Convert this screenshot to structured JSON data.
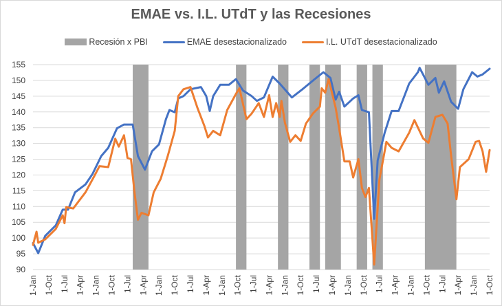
{
  "chart_data": {
    "type": "line",
    "title": "EMAE vs. I.L. UTdT y las Recesiones",
    "legend_position": "top",
    "grid": true,
    "ylim": [
      90,
      155
    ],
    "y_ticks": [
      90,
      95,
      100,
      105,
      110,
      115,
      120,
      125,
      130,
      135,
      140,
      145,
      150,
      155
    ],
    "x_range": [
      "2004-01",
      "2025-10"
    ],
    "x_tick_labels": [
      "1-Jan",
      "1-Oct",
      "1-Jul",
      "1-Apr",
      "1-Jan",
      "1-Oct",
      "1-Jul",
      "1-Apr",
      "1-Jan",
      "1-Oct",
      "1-Jul",
      "1-Apr",
      "1-Jan",
      "1-Oct",
      "1-Jul",
      "1-Apr",
      "1-Jan",
      "1-Oct",
      "1-Jul",
      "1-Apr",
      "1-Jan",
      "1-Oct",
      "1-Jul",
      "1-Apr",
      "1-Jan",
      "1-Oct",
      "1-Jul",
      "1-Apr",
      "1-Jan",
      "1-Oct"
    ],
    "recessions": {
      "name": "Recesión x PBI",
      "color": "#a5a5a5",
      "periods": [
        [
          "2008-10",
          "2009-07"
        ],
        [
          "2013-09",
          "2014-03"
        ],
        [
          "2015-09",
          "2016-03"
        ],
        [
          "2017-03",
          "2017-09"
        ],
        [
          "2017-12",
          "2018-09"
        ],
        [
          "2019-06",
          "2019-12"
        ],
        [
          "2020-03",
          "2020-09"
        ],
        [
          "2022-09",
          "2024-03"
        ]
      ]
    },
    "series": [
      {
        "name": "EMAE desestacionalizado",
        "color": "#4472c4",
        "points": [
          [
            "2004-01",
            98.4
          ],
          [
            "2004-04",
            95.2
          ],
          [
            "2004-08",
            100.7
          ],
          [
            "2005-02",
            104
          ],
          [
            "2005-06",
            109
          ],
          [
            "2005-09",
            109
          ],
          [
            "2006-01",
            114.5
          ],
          [
            "2006-07",
            117
          ],
          [
            "2006-11",
            120.3
          ],
          [
            "2007-04",
            126
          ],
          [
            "2007-08",
            128.6
          ],
          [
            "2008-01",
            134.8
          ],
          [
            "2008-05",
            136
          ],
          [
            "2008-10",
            136
          ],
          [
            "2009-01",
            126
          ],
          [
            "2009-05",
            121.7
          ],
          [
            "2009-09",
            127.5
          ],
          [
            "2010-01",
            129.7
          ],
          [
            "2010-05",
            137.7
          ],
          [
            "2010-07",
            140.6
          ],
          [
            "2010-10",
            139.9
          ],
          [
            "2010-12",
            144.3
          ],
          [
            "2011-03",
            145
          ],
          [
            "2011-07",
            147.2
          ],
          [
            "2012-01",
            147.9
          ],
          [
            "2012-04",
            145
          ],
          [
            "2012-06",
            140.3
          ],
          [
            "2012-08",
            145
          ],
          [
            "2012-12",
            148.6
          ],
          [
            "2013-05",
            148.6
          ],
          [
            "2013-09",
            150.4
          ],
          [
            "2014-01",
            146.8
          ],
          [
            "2014-06",
            145
          ],
          [
            "2014-09",
            143.5
          ],
          [
            "2015-01",
            144.6
          ],
          [
            "2015-06",
            151.2
          ],
          [
            "2015-10",
            149
          ],
          [
            "2016-05",
            144.6
          ],
          [
            "2016-11",
            147.2
          ],
          [
            "2017-06",
            150.4
          ],
          [
            "2017-11",
            152.6
          ],
          [
            "2018-03",
            150.8
          ],
          [
            "2018-06",
            143.9
          ],
          [
            "2018-08",
            146.4
          ],
          [
            "2018-11",
            141.7
          ],
          [
            "2019-04",
            144.3
          ],
          [
            "2019-07",
            145.3
          ],
          [
            "2019-09",
            140.6
          ],
          [
            "2020-01",
            139.9
          ],
          [
            "2020-04",
            106.1
          ],
          [
            "2020-06",
            124.6
          ],
          [
            "2020-10",
            133.4
          ],
          [
            "2021-02",
            140.3
          ],
          [
            "2021-06",
            140.3
          ],
          [
            "2021-12",
            149
          ],
          [
            "2022-05",
            152.6
          ],
          [
            "2022-06",
            154
          ],
          [
            "2022-11",
            148.6
          ],
          [
            "2023-03",
            150.8
          ],
          [
            "2023-05",
            146.1
          ],
          [
            "2023-08",
            149.7
          ],
          [
            "2023-12",
            143.2
          ],
          [
            "2024-04",
            141
          ],
          [
            "2024-07",
            147.2
          ],
          [
            "2024-12",
            152.6
          ],
          [
            "2025-03",
            151.2
          ],
          [
            "2025-06",
            151.9
          ],
          [
            "2025-10",
            153.7
          ]
        ]
      },
      {
        "name": "I.L. UTdT desestacionalizado",
        "color": "#ed7d31",
        "points": [
          [
            "2004-01",
            97.8
          ],
          [
            "2004-03",
            102
          ],
          [
            "2004-04",
            98.5
          ],
          [
            "2004-08",
            99.6
          ],
          [
            "2005-02",
            102.9
          ],
          [
            "2005-06",
            107.2
          ],
          [
            "2005-07",
            104.7
          ],
          [
            "2005-08",
            109.8
          ],
          [
            "2005-12",
            109.4
          ],
          [
            "2006-07",
            114.5
          ],
          [
            "2006-12",
            119.6
          ],
          [
            "2007-03",
            122.8
          ],
          [
            "2007-08",
            122.5
          ],
          [
            "2007-12",
            131.5
          ],
          [
            "2008-02",
            129
          ],
          [
            "2008-05",
            132.6
          ],
          [
            "2008-07",
            125.4
          ],
          [
            "2008-09",
            125
          ],
          [
            "2008-11",
            114.5
          ],
          [
            "2009-01",
            105.8
          ],
          [
            "2009-03",
            108
          ],
          [
            "2009-07",
            107.2
          ],
          [
            "2009-10",
            114.5
          ],
          [
            "2010-02",
            118.8
          ],
          [
            "2010-06",
            126
          ],
          [
            "2010-10",
            134
          ],
          [
            "2010-12",
            145
          ],
          [
            "2011-03",
            147.2
          ],
          [
            "2011-07",
            147.9
          ],
          [
            "2011-11",
            141.3
          ],
          [
            "2012-03",
            135.5
          ],
          [
            "2012-05",
            131.9
          ],
          [
            "2012-08",
            134
          ],
          [
            "2012-12",
            132.6
          ],
          [
            "2013-04",
            140.6
          ],
          [
            "2013-09",
            145.7
          ],
          [
            "2013-11",
            147.5
          ],
          [
            "2014-03",
            137.7
          ],
          [
            "2014-06",
            139.5
          ],
          [
            "2014-10",
            142.8
          ],
          [
            "2015-01",
            138.4
          ],
          [
            "2015-04",
            145.3
          ],
          [
            "2015-06",
            138.4
          ],
          [
            "2015-08",
            142.8
          ],
          [
            "2015-10",
            138.4
          ],
          [
            "2015-11",
            143.5
          ],
          [
            "2016-01",
            136.6
          ],
          [
            "2016-04",
            130.5
          ],
          [
            "2016-07",
            132.6
          ],
          [
            "2016-10",
            130.8
          ],
          [
            "2017-01",
            136.3
          ],
          [
            "2017-05",
            139.5
          ],
          [
            "2017-09",
            141.7
          ],
          [
            "2017-10",
            147.5
          ],
          [
            "2017-12",
            146.1
          ],
          [
            "2018-02",
            150.4
          ],
          [
            "2018-06",
            141.3
          ],
          [
            "2018-08",
            134.8
          ],
          [
            "2018-11",
            124.3
          ],
          [
            "2019-02",
            124.3
          ],
          [
            "2019-04",
            119.2
          ],
          [
            "2019-07",
            125
          ],
          [
            "2019-09",
            115.9
          ],
          [
            "2019-11",
            113
          ],
          [
            "2020-01",
            115.9
          ],
          [
            "2020-04",
            91.6
          ],
          [
            "2020-07",
            118.5
          ],
          [
            "2020-11",
            130.5
          ],
          [
            "2021-02",
            128.6
          ],
          [
            "2021-06",
            127.5
          ],
          [
            "2021-12",
            133.4
          ],
          [
            "2022-03",
            137.4
          ],
          [
            "2022-08",
            131.6
          ],
          [
            "2022-11",
            130.2
          ],
          [
            "2023-03",
            138.4
          ],
          [
            "2023-07",
            139.1
          ],
          [
            "2023-10",
            136.3
          ],
          [
            "2023-12",
            126.1
          ],
          [
            "2024-03",
            112.3
          ],
          [
            "2024-05",
            122.5
          ],
          [
            "2024-10",
            125
          ],
          [
            "2025-02",
            130.5
          ],
          [
            "2025-04",
            130.8
          ],
          [
            "2025-06",
            127.5
          ],
          [
            "2025-08",
            121
          ],
          [
            "2025-10",
            127.9
          ]
        ]
      }
    ]
  }
}
